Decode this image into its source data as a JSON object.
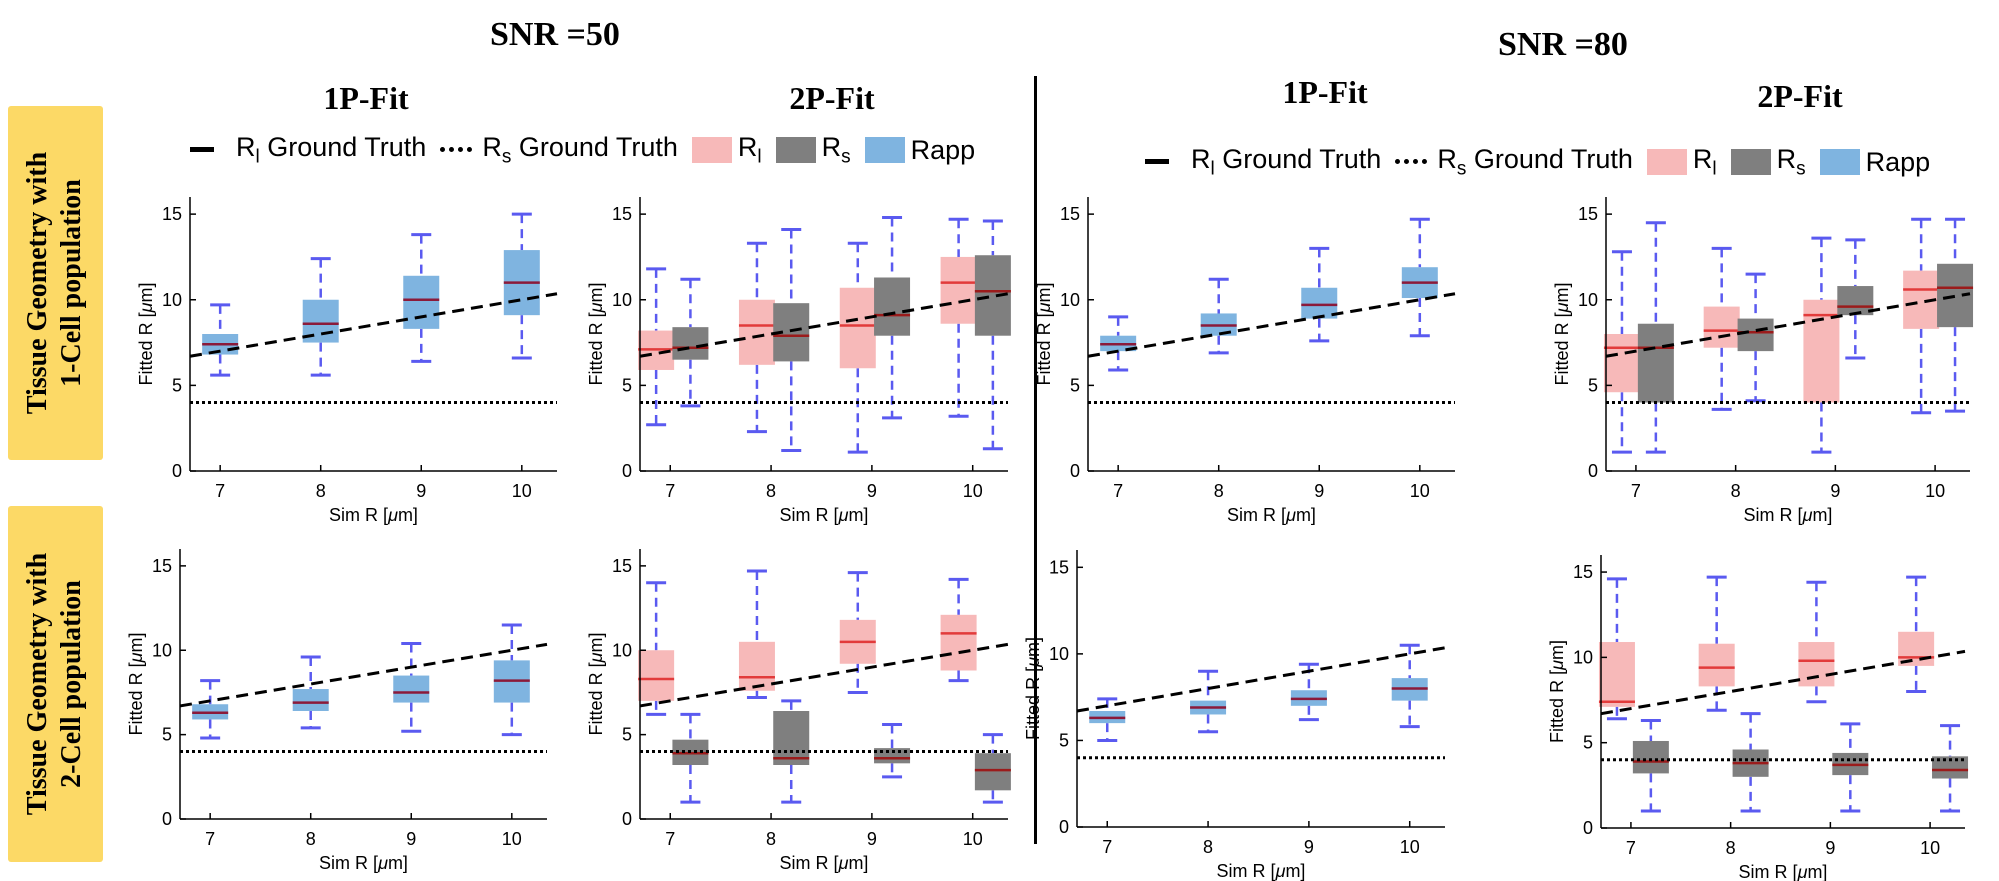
{
  "column_groups": [
    {
      "snr_label": "SNR =50",
      "fit_titles": [
        "1P-Fit",
        "2P-Fit"
      ]
    },
    {
      "snr_label": "SNR =80",
      "fit_titles": [
        "1P-Fit",
        "2P-Fit"
      ]
    }
  ],
  "row_labels": [
    [
      "Tissue Geometry with",
      "1-Cell population"
    ],
    [
      "Tissue Geometry with",
      "2-Cell population"
    ]
  ],
  "legend": {
    "rl_ground_truth": {
      "main": "R",
      "sub": "l",
      "rest": " Ground Truth"
    },
    "rs_ground_truth": {
      "main": "R",
      "sub": "s",
      "rest": " Ground Truth"
    },
    "rl": {
      "main": "R",
      "sub": "l"
    },
    "rs": {
      "main": "R",
      "sub": "s"
    },
    "rapp": {
      "main": "Rapp"
    }
  },
  "colors": {
    "rapp": "#7fb4e0",
    "rl": "#f7b9b9",
    "rs": "#7f7f7f",
    "whisker": "#5a5af0",
    "median_rapp": "#8b1a3a",
    "median_rl": "#e23b3b",
    "median_rs": "#9b1b1b",
    "row_label_bg": "#fcd966"
  },
  "chart_data": [
    {
      "id": "snr50_1cell_1p",
      "type": "box",
      "fit": "1P-Fit",
      "snr": "SNR =50",
      "geometry": "1-Cell population",
      "xlabel": "Sim R [μm]",
      "ylabel": "Fitted R [μm]",
      "ylim": [
        0,
        16
      ],
      "yticks": [
        0,
        5,
        10,
        15
      ],
      "xticks": [
        7,
        8,
        9,
        10
      ],
      "xlim": [
        6.7,
        10.35
      ],
      "rl_truth_line": {
        "x": [
          6.7,
          10.35
        ],
        "y": [
          6.7,
          10.35
        ]
      },
      "rs_truth": 4,
      "series": [
        {
          "name": "Rapp",
          "boxes": [
            {
              "x": 7,
              "q1": 6.8,
              "median": 7.4,
              "q3": 8.0,
              "low": 5.6,
              "high": 9.7
            },
            {
              "x": 8,
              "q1": 7.5,
              "median": 8.6,
              "q3": 10.0,
              "low": 5.6,
              "high": 12.4
            },
            {
              "x": 9,
              "q1": 8.3,
              "median": 10.0,
              "q3": 11.4,
              "low": 6.4,
              "high": 13.8
            },
            {
              "x": 10,
              "q1": 9.1,
              "median": 11.0,
              "q3": 12.9,
              "low": 6.6,
              "high": 15.0
            }
          ]
        }
      ]
    },
    {
      "id": "snr50_1cell_2p",
      "type": "box",
      "fit": "2P-Fit",
      "snr": "SNR =50",
      "geometry": "1-Cell population",
      "xlabel": "Sim R [μm]",
      "ylabel": "Fitted R [μm]",
      "ylim": [
        0,
        16
      ],
      "yticks": [
        0,
        5,
        10,
        15
      ],
      "xticks": [
        7,
        8,
        9,
        10
      ],
      "xlim": [
        6.7,
        10.35
      ],
      "rl_truth_line": {
        "x": [
          6.7,
          10.35
        ],
        "y": [
          6.7,
          10.35
        ]
      },
      "rs_truth": 4,
      "series": [
        {
          "name": "Rl",
          "boxes": [
            {
              "x": 6.86,
              "q1": 5.9,
              "median": 7.1,
              "q3": 8.2,
              "low": 2.7,
              "high": 11.8
            },
            {
              "x": 7.86,
              "q1": 6.2,
              "median": 8.5,
              "q3": 10.0,
              "low": 2.3,
              "high": 13.3
            },
            {
              "x": 8.86,
              "q1": 6.0,
              "median": 8.5,
              "q3": 10.7,
              "low": 1.1,
              "high": 13.3
            },
            {
              "x": 9.86,
              "q1": 8.6,
              "median": 11.0,
              "q3": 12.5,
              "low": 3.2,
              "high": 14.7
            }
          ]
        },
        {
          "name": "Rs",
          "boxes": [
            {
              "x": 7.2,
              "q1": 6.5,
              "median": 7.2,
              "q3": 8.4,
              "low": 3.8,
              "high": 11.2
            },
            {
              "x": 8.2,
              "q1": 6.4,
              "median": 7.9,
              "q3": 9.8,
              "low": 1.2,
              "high": 14.1
            },
            {
              "x": 9.2,
              "q1": 7.9,
              "median": 9.1,
              "q3": 11.3,
              "low": 3.1,
              "high": 14.8
            },
            {
              "x": 10.2,
              "q1": 7.9,
              "median": 10.5,
              "q3": 12.6,
              "low": 1.3,
              "high": 14.6
            }
          ]
        }
      ]
    },
    {
      "id": "snr80_1cell_1p",
      "type": "box",
      "fit": "1P-Fit",
      "snr": "SNR =80",
      "geometry": "1-Cell population",
      "xlabel": "Sim R [μm]",
      "ylabel": "Fitted R [μm]",
      "ylim": [
        0,
        16
      ],
      "yticks": [
        0,
        5,
        10,
        15
      ],
      "xticks": [
        7,
        8,
        9,
        10
      ],
      "xlim": [
        6.7,
        10.35
      ],
      "rl_truth_line": {
        "x": [
          6.7,
          10.35
        ],
        "y": [
          6.7,
          10.35
        ]
      },
      "rs_truth": 4,
      "series": [
        {
          "name": "Rapp",
          "boxes": [
            {
              "x": 7,
              "q1": 7.0,
              "median": 7.4,
              "q3": 7.9,
              "low": 5.9,
              "high": 9.0
            },
            {
              "x": 8,
              "q1": 7.9,
              "median": 8.5,
              "q3": 9.2,
              "low": 6.9,
              "high": 11.2
            },
            {
              "x": 9,
              "q1": 8.9,
              "median": 9.7,
              "q3": 10.7,
              "low": 7.6,
              "high": 13.0
            },
            {
              "x": 10,
              "q1": 10.1,
              "median": 11.0,
              "q3": 11.9,
              "low": 7.9,
              "high": 14.7
            }
          ]
        }
      ]
    },
    {
      "id": "snr80_1cell_2p",
      "type": "box",
      "fit": "2P-Fit",
      "snr": "SNR =80",
      "geometry": "1-Cell population",
      "xlabel": "Sim R [μm]",
      "ylabel": "Fitted R [μm]",
      "ylim": [
        0,
        16
      ],
      "yticks": [
        0,
        5,
        10,
        15
      ],
      "xticks": [
        7,
        8,
        9,
        10
      ],
      "xlim": [
        6.7,
        10.35
      ],
      "rl_truth_line": {
        "x": [
          6.7,
          10.35
        ],
        "y": [
          6.7,
          10.35
        ]
      },
      "rs_truth": 4,
      "series": [
        {
          "name": "Rl",
          "boxes": [
            {
              "x": 6.86,
              "q1": 4.6,
              "median": 7.2,
              "q3": 8.0,
              "low": 1.1,
              "high": 12.8
            },
            {
              "x": 7.86,
              "q1": 7.2,
              "median": 8.2,
              "q3": 9.6,
              "low": 3.6,
              "high": 13.0
            },
            {
              "x": 8.86,
              "q1": 4.0,
              "median": 9.1,
              "q3": 10.0,
              "low": 1.1,
              "high": 13.6
            },
            {
              "x": 9.86,
              "q1": 8.3,
              "median": 10.6,
              "q3": 11.7,
              "low": 3.4,
              "high": 14.7
            }
          ]
        },
        {
          "name": "Rs",
          "boxes": [
            {
              "x": 7.2,
              "q1": 4.0,
              "median": 7.2,
              "q3": 8.6,
              "low": 1.1,
              "high": 14.5
            },
            {
              "x": 8.2,
              "q1": 7.0,
              "median": 8.1,
              "q3": 8.9,
              "low": 4.1,
              "high": 11.5
            },
            {
              "x": 9.2,
              "q1": 9.1,
              "median": 9.6,
              "q3": 10.8,
              "low": 6.6,
              "high": 13.5
            },
            {
              "x": 10.2,
              "q1": 8.4,
              "median": 10.7,
              "q3": 12.1,
              "low": 3.5,
              "high": 14.7
            }
          ]
        }
      ]
    },
    {
      "id": "snr50_2cell_1p",
      "type": "box",
      "fit": "1P-Fit",
      "snr": "SNR =50",
      "geometry": "2-Cell population",
      "xlabel": "Sim R [μm]",
      "ylabel": "Fitted R [μm]",
      "ylim": [
        0,
        16
      ],
      "yticks": [
        0,
        5,
        10,
        15
      ],
      "xticks": [
        7,
        8,
        9,
        10
      ],
      "xlim": [
        6.7,
        10.35
      ],
      "rl_truth_line": {
        "x": [
          6.7,
          10.35
        ],
        "y": [
          6.7,
          10.35
        ]
      },
      "rs_truth": 4,
      "series": [
        {
          "name": "Rapp",
          "boxes": [
            {
              "x": 7,
              "q1": 5.9,
              "median": 6.3,
              "q3": 6.8,
              "low": 4.8,
              "high": 8.2
            },
            {
              "x": 8,
              "q1": 6.4,
              "median": 6.9,
              "q3": 7.7,
              "low": 5.4,
              "high": 9.6
            },
            {
              "x": 9,
              "q1": 6.9,
              "median": 7.5,
              "q3": 8.5,
              "low": 5.2,
              "high": 10.4
            },
            {
              "x": 10,
              "q1": 6.9,
              "median": 8.2,
              "q3": 9.4,
              "low": 5.0,
              "high": 11.5
            }
          ]
        }
      ]
    },
    {
      "id": "snr50_2cell_2p",
      "type": "box",
      "fit": "2P-Fit",
      "snr": "SNR =50",
      "geometry": "2-Cell population",
      "xlabel": "Sim R [μm]",
      "ylabel": "Fitted R [μm]",
      "ylim": [
        0,
        16
      ],
      "yticks": [
        0,
        5,
        10,
        15
      ],
      "xticks": [
        7,
        8,
        9,
        10
      ],
      "xlim": [
        6.7,
        10.35
      ],
      "rl_truth_line": {
        "x": [
          6.7,
          10.35
        ],
        "y": [
          6.7,
          10.35
        ]
      },
      "rs_truth": 4,
      "series": [
        {
          "name": "Rl",
          "boxes": [
            {
              "x": 6.86,
              "q1": 7.0,
              "median": 8.3,
              "q3": 10.0,
              "low": 6.2,
              "high": 14.0
            },
            {
              "x": 7.86,
              "q1": 7.6,
              "median": 8.4,
              "q3": 10.5,
              "low": 7.2,
              "high": 14.7
            },
            {
              "x": 8.86,
              "q1": 9.2,
              "median": 10.5,
              "q3": 11.8,
              "low": 7.5,
              "high": 14.6
            },
            {
              "x": 9.86,
              "q1": 8.8,
              "median": 11.0,
              "q3": 12.1,
              "low": 8.2,
              "high": 14.2
            }
          ]
        },
        {
          "name": "Rs",
          "boxes": [
            {
              "x": 7.2,
              "q1": 3.2,
              "median": 3.9,
              "q3": 4.7,
              "low": 1.0,
              "high": 6.2
            },
            {
              "x": 8.2,
              "q1": 3.2,
              "median": 3.6,
              "q3": 6.4,
              "low": 1.0,
              "high": 7.0
            },
            {
              "x": 9.2,
              "q1": 3.3,
              "median": 3.6,
              "q3": 4.2,
              "low": 2.5,
              "high": 5.6
            },
            {
              "x": 10.2,
              "q1": 1.7,
              "median": 2.9,
              "q3": 3.9,
              "low": 1.0,
              "high": 5.0
            }
          ]
        }
      ]
    },
    {
      "id": "snr80_2cell_1p",
      "type": "box",
      "fit": "1P-Fit",
      "snr": "SNR =80",
      "geometry": "2-Cell population",
      "xlabel": "Sim R [μm]",
      "ylabel": "Fitted R [μm]",
      "ylim": [
        0,
        16
      ],
      "yticks": [
        0,
        5,
        10,
        15
      ],
      "xticks": [
        7,
        8,
        9,
        10
      ],
      "xlim": [
        6.7,
        10.35
      ],
      "rl_truth_line": {
        "x": [
          6.7,
          10.35
        ],
        "y": [
          6.7,
          10.35
        ]
      },
      "rs_truth": 4,
      "series": [
        {
          "name": "Rapp",
          "boxes": [
            {
              "x": 7,
              "q1": 6.0,
              "median": 6.3,
              "q3": 6.7,
              "low": 5.0,
              "high": 7.4
            },
            {
              "x": 8,
              "q1": 6.5,
              "median": 6.9,
              "q3": 7.3,
              "low": 5.5,
              "high": 9.0
            },
            {
              "x": 9,
              "q1": 7.0,
              "median": 7.4,
              "q3": 7.9,
              "low": 6.2,
              "high": 9.4
            },
            {
              "x": 10,
              "q1": 7.3,
              "median": 8.0,
              "q3": 8.6,
              "low": 5.8,
              "high": 10.5
            }
          ]
        }
      ]
    },
    {
      "id": "snr80_2cell_2p",
      "type": "box",
      "fit": "2P-Fit",
      "snr": "SNR =80",
      "geometry": "2-Cell population",
      "xlabel": "Sim R [μm]",
      "ylabel": "Fitted R [μm]",
      "ylim": [
        0,
        16
      ],
      "yticks": [
        0,
        5,
        10,
        15
      ],
      "xticks": [
        7,
        8,
        9,
        10
      ],
      "xlim": [
        6.7,
        10.35
      ],
      "rl_truth_line": {
        "x": [
          6.7,
          10.35
        ],
        "y": [
          6.7,
          10.35
        ]
      },
      "rs_truth": 4,
      "series": [
        {
          "name": "Rl",
          "boxes": [
            {
              "x": 6.86,
              "q1": 7.1,
              "median": 7.4,
              "q3": 10.9,
              "low": 6.4,
              "high": 14.6
            },
            {
              "x": 7.86,
              "q1": 8.3,
              "median": 9.4,
              "q3": 10.8,
              "low": 6.9,
              "high": 14.7
            },
            {
              "x": 8.86,
              "q1": 8.3,
              "median": 9.8,
              "q3": 10.9,
              "low": 7.4,
              "high": 14.4
            },
            {
              "x": 9.86,
              "q1": 9.5,
              "median": 10.0,
              "q3": 11.5,
              "low": 8.0,
              "high": 14.7
            }
          ]
        },
        {
          "name": "Rs",
          "boxes": [
            {
              "x": 7.2,
              "q1": 3.2,
              "median": 3.9,
              "q3": 5.1,
              "low": 1.0,
              "high": 6.3
            },
            {
              "x": 8.2,
              "q1": 3.0,
              "median": 3.8,
              "q3": 4.6,
              "low": 1.0,
              "high": 6.7
            },
            {
              "x": 9.2,
              "q1": 3.1,
              "median": 3.7,
              "q3": 4.4,
              "low": 1.0,
              "high": 6.1
            },
            {
              "x": 10.2,
              "q1": 2.9,
              "median": 3.4,
              "q3": 4.2,
              "low": 1.0,
              "high": 6.0
            }
          ]
        }
      ]
    }
  ]
}
